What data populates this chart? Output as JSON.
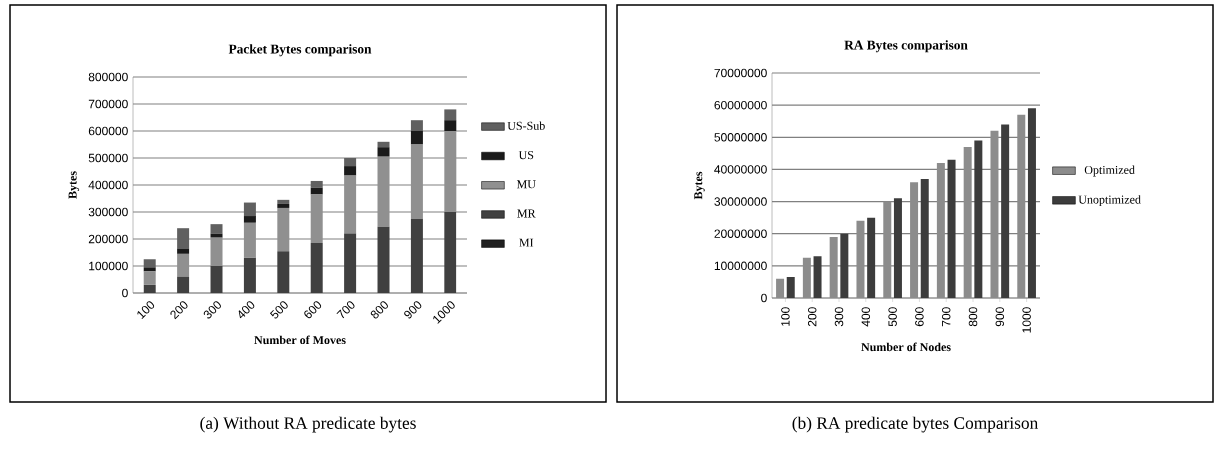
{
  "chart_data": [
    {
      "type": "bar",
      "title": "Packet Bytes comparison",
      "xlabel": "Number of Moves",
      "ylabel": "Bytes",
      "stacked": true,
      "categories": [
        "100",
        "200",
        "300",
        "400",
        "500",
        "600",
        "700",
        "800",
        "900",
        "1000"
      ],
      "series": [
        {
          "name": "MI",
          "color": "#202020",
          "values": [
            0,
            0,
            0,
            0,
            0,
            0,
            0,
            0,
            0,
            0
          ]
        },
        {
          "name": "MR",
          "color": "#404040",
          "values": [
            30000,
            60000,
            100000,
            130000,
            155000,
            185000,
            220000,
            245000,
            275000,
            300000
          ]
        },
        {
          "name": "MU",
          "color": "#909090",
          "values": [
            50000,
            85000,
            105000,
            130000,
            160000,
            180000,
            215000,
            260000,
            275000,
            300000
          ]
        },
        {
          "name": "US",
          "color": "#1a1a1a",
          "values": [
            15000,
            20000,
            15000,
            25000,
            15000,
            25000,
            35000,
            35000,
            50000,
            40000
          ]
        },
        {
          "name": "US-Sub",
          "color": "#606060",
          "values": [
            30000,
            75000,
            35000,
            50000,
            15000,
            25000,
            30000,
            20000,
            40000,
            40000
          ]
        }
      ],
      "ylim": [
        0,
        800000
      ],
      "yticks": [
        0,
        100000,
        200000,
        300000,
        400000,
        500000,
        600000,
        700000,
        800000
      ],
      "grid": "y",
      "legend": "right",
      "annotations": [
        "(a) Without RA predicate bytes"
      ]
    },
    {
      "type": "bar",
      "title": "RA Bytes comparison",
      "xlabel": "Number of Nodes",
      "ylabel": "Bytes",
      "categories": [
        "100",
        "200",
        "300",
        "400",
        "500",
        "600",
        "700",
        "800",
        "900",
        "1000"
      ],
      "series": [
        {
          "name": "Optimized",
          "color": "#8c8c8c",
          "values": [
            6000000,
            12500000,
            19000000,
            24000000,
            30000000,
            36000000,
            42000000,
            47000000,
            52000000,
            57000000
          ]
        },
        {
          "name": "Unoptimized",
          "color": "#3c3c3c",
          "values": [
            6500000,
            13000000,
            20000000,
            25000000,
            31000000,
            37000000,
            43000000,
            49000000,
            54000000,
            59000000
          ]
        }
      ],
      "ylim": [
        0,
        70000000
      ],
      "yticks": [
        0,
        10000000,
        20000000,
        30000000,
        40000000,
        50000000,
        60000000,
        70000000
      ],
      "grid": "y",
      "legend": "right",
      "annotations": [
        "(b) RA predicate bytes Comparison"
      ]
    }
  ]
}
